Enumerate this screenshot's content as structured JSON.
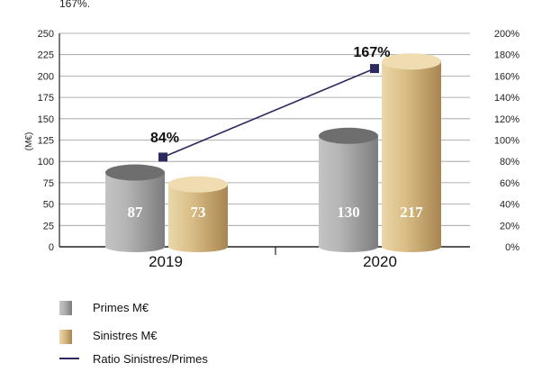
{
  "top_note": "167%.",
  "chart_data": {
    "type": "bar",
    "categories": [
      "2019",
      "2020"
    ],
    "series": [
      {
        "name": "Primes M€",
        "values": [
          87,
          130
        ],
        "value_labels": [
          "87",
          "130"
        ],
        "axis": "left",
        "color_top": "#6e6e6e",
        "color_body": "#a8a8a8"
      },
      {
        "name": "Sinistres M€",
        "values": [
          73,
          217
        ],
        "value_labels": [
          "73",
          "217"
        ],
        "axis": "left",
        "color_top": "#efdcb0",
        "color_body": "#d3b57a"
      },
      {
        "name": "Ratio Sinistres/Primes",
        "type": "line",
        "values": [
          84,
          167
        ],
        "value_labels": [
          "84%",
          "167%"
        ],
        "axis": "right",
        "color": "#2c2a5e"
      }
    ],
    "ylabel": "(M€)",
    "ylim": [
      0,
      250
    ],
    "y_ticks": [
      "0",
      "25",
      "50",
      "75",
      "100",
      "125",
      "150",
      "175",
      "200",
      "225",
      "250"
    ],
    "y2lim": [
      0,
      200
    ],
    "y2_ticks": [
      "0%",
      "20%",
      "40%",
      "60%",
      "80%",
      "100%",
      "120%",
      "140%",
      "160%",
      "180%",
      "200%"
    ],
    "grid": true,
    "legend": [
      "Primes M€",
      "Sinistres M€",
      "Ratio Sinistres/Primes"
    ],
    "legend_position": "bottom-left"
  }
}
